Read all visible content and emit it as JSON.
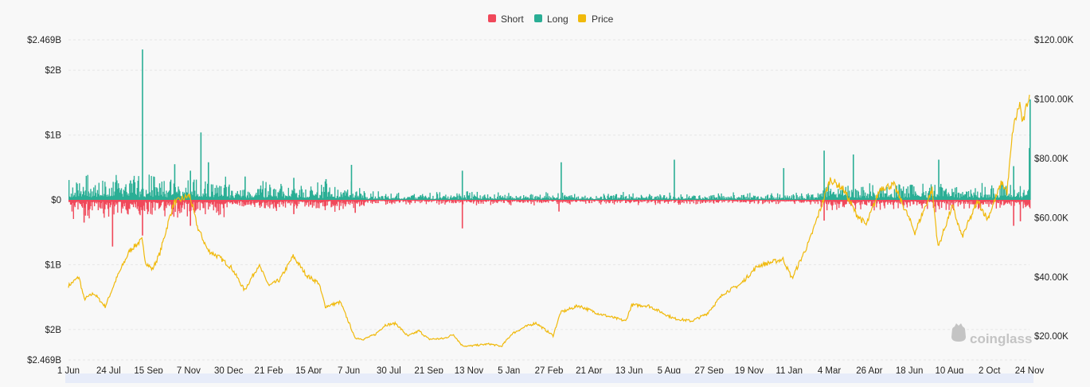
{
  "chart_data": {
    "type": "bar",
    "subtype": "diverging bar with price line overlay (liquidations)",
    "title": "",
    "legend": {
      "placement": "top-center",
      "items": [
        {
          "key": "short",
          "label": "Short"
        },
        {
          "key": "long",
          "label": "Long"
        },
        {
          "key": "price",
          "label": "Price"
        }
      ]
    },
    "colors": {
      "short": "#f0485a",
      "long": "#2aae95",
      "price": "#f0b90b",
      "grid": "#e6e6e6",
      "background": "#f8f8f8",
      "scrollbar": "#e7ecf9"
    },
    "x_axis": {
      "ticks": [
        "1 Jun",
        "24 Jul",
        "15 Sep",
        "7 Nov",
        "30 Dec",
        "21 Feb",
        "15 Apr",
        "7 Jun",
        "30 Jul",
        "21 Sep",
        "13 Nov",
        "5 Jan",
        "27 Feb",
        "21 Apr",
        "13 Jun",
        "5 Aug",
        "27 Sep",
        "19 Nov",
        "11 Jan",
        "4 Mar",
        "26 Apr",
        "18 Jun",
        "10 Aug",
        "2 Oct",
        "24 Nov"
      ],
      "start_date": "2021-06-01",
      "end_date": "2024-12-05"
    },
    "y_axis_left": {
      "ticks": [
        {
          "value": 2.469,
          "label": "$2.469B"
        },
        {
          "value": 2,
          "label": "$2B"
        },
        {
          "value": 1,
          "label": "$1B"
        },
        {
          "value": 0,
          "label": "$0"
        },
        {
          "value": -1,
          "label": "$1B"
        },
        {
          "value": -2,
          "label": "$2B"
        },
        {
          "value": -2.469,
          "label": "$2.469B"
        }
      ],
      "range": [
        -2.469,
        2.469
      ],
      "unit": "USD billions"
    },
    "y_axis_right": {
      "ticks": [
        {
          "value": 120000,
          "label": "$120.00K"
        },
        {
          "value": 100000,
          "label": "$100.00K"
        },
        {
          "value": 80000,
          "label": "$80.00K"
        },
        {
          "value": 60000,
          "label": "$60.00K"
        },
        {
          "value": 40000,
          "label": "$40.00K"
        },
        {
          "value": 20000,
          "label": "$20.00K"
        }
      ],
      "range": [
        12000,
        120000
      ],
      "unit": "USD"
    },
    "price_series": [
      [
        "2021-06-01",
        37000
      ],
      [
        "2021-06-15",
        40000
      ],
      [
        "2021-06-22",
        32500
      ],
      [
        "2021-07-05",
        34500
      ],
      [
        "2021-07-20",
        30000
      ],
      [
        "2021-08-05",
        40000
      ],
      [
        "2021-08-22",
        49000
      ],
      [
        "2021-09-07",
        52500
      ],
      [
        "2021-09-12",
        45000
      ],
      [
        "2021-09-21",
        42500
      ],
      [
        "2021-10-01",
        48000
      ],
      [
        "2021-10-15",
        61000
      ],
      [
        "2021-10-20",
        65000
      ],
      [
        "2021-11-10",
        67500
      ],
      [
        "2021-11-20",
        57000
      ],
      [
        "2021-12-04",
        49000
      ],
      [
        "2021-12-20",
        46500
      ],
      [
        "2022-01-05",
        43000
      ],
      [
        "2022-01-22",
        35500
      ],
      [
        "2022-02-10",
        44000
      ],
      [
        "2022-02-24",
        37000
      ],
      [
        "2022-03-10",
        39000
      ],
      [
        "2022-03-28",
        47000
      ],
      [
        "2022-04-15",
        40500
      ],
      [
        "2022-05-01",
        38000
      ],
      [
        "2022-05-10",
        30000
      ],
      [
        "2022-05-30",
        31500
      ],
      [
        "2022-06-13",
        23000
      ],
      [
        "2022-06-18",
        19500
      ],
      [
        "2022-06-30",
        19000
      ],
      [
        "2022-07-15",
        20500
      ],
      [
        "2022-07-29",
        23800
      ],
      [
        "2022-08-12",
        24300
      ],
      [
        "2022-08-28",
        20000
      ],
      [
        "2022-09-12",
        21800
      ],
      [
        "2022-09-25",
        19000
      ],
      [
        "2022-10-15",
        19200
      ],
      [
        "2022-10-28",
        20600
      ],
      [
        "2022-11-08",
        17000
      ],
      [
        "2022-11-15",
        16600
      ],
      [
        "2022-12-15",
        17400
      ],
      [
        "2022-12-31",
        16550
      ],
      [
        "2023-01-14",
        20800
      ],
      [
        "2023-01-31",
        23100
      ],
      [
        "2023-02-15",
        24500
      ],
      [
        "2023-03-10",
        20200
      ],
      [
        "2023-03-20",
        28000
      ],
      [
        "2023-04-13",
        30300
      ],
      [
        "2023-05-10",
        27600
      ],
      [
        "2023-06-15",
        25100
      ],
      [
        "2023-06-23",
        30500
      ],
      [
        "2023-07-15",
        30300
      ],
      [
        "2023-08-18",
        26000
      ],
      [
        "2023-09-11",
        25100
      ],
      [
        "2023-10-01",
        27500
      ],
      [
        "2023-10-24",
        34500
      ],
      [
        "2023-11-15",
        37500
      ],
      [
        "2023-12-08",
        43700
      ],
      [
        "2024-01-11",
        46000
      ],
      [
        "2024-01-23",
        39500
      ],
      [
        "2024-02-15",
        52000
      ],
      [
        "2024-03-05",
        66000
      ],
      [
        "2024-03-14",
        73000
      ],
      [
        "2024-04-01",
        69500
      ],
      [
        "2024-04-17",
        61500
      ],
      [
        "2024-05-01",
        57500
      ],
      [
        "2024-05-20",
        70000
      ],
      [
        "2024-06-07",
        71000
      ],
      [
        "2024-06-25",
        61000
      ],
      [
        "2024-07-05",
        55000
      ],
      [
        "2024-07-28",
        69500
      ],
      [
        "2024-08-05",
        50000
      ],
      [
        "2024-08-24",
        64000
      ],
      [
        "2024-09-06",
        53500
      ],
      [
        "2024-09-27",
        65500
      ],
      [
        "2024-10-10",
        59500
      ],
      [
        "2024-10-29",
        72000
      ],
      [
        "2024-11-05",
        68500
      ],
      [
        "2024-11-13",
        90000
      ],
      [
        "2024-11-22",
        98500
      ],
      [
        "2024-11-26",
        91500
      ],
      [
        "2024-12-05",
        102000
      ]
    ],
    "long_spikes": [
      [
        "2021-09-07",
        2.32
      ],
      [
        "2021-11-24",
        1.04
      ],
      [
        "2021-10-20",
        0.55
      ],
      [
        "2021-11-10",
        0.45
      ],
      [
        "2021-12-04",
        0.58
      ],
      [
        "2021-08-22",
        0.3
      ],
      [
        "2022-01-22",
        0.36
      ],
      [
        "2022-06-13",
        0.54
      ],
      [
        "2022-05-10",
        0.32
      ],
      [
        "2022-03-28",
        0.34
      ],
      [
        "2022-11-08",
        0.45
      ],
      [
        "2023-03-20",
        0.58
      ],
      [
        "2023-08-18",
        0.62
      ],
      [
        "2024-01-11",
        0.49
      ],
      [
        "2024-03-05",
        0.76
      ],
      [
        "2024-04-13",
        0.7
      ],
      [
        "2024-08-05",
        0.62
      ],
      [
        "2024-11-13",
        0.52
      ],
      [
        "2024-12-04",
        0.8
      ],
      [
        "2024-12-05",
        1.55
      ]
    ],
    "short_spikes": [
      [
        "2021-07-29",
        -0.72
      ],
      [
        "2021-09-07",
        -0.55
      ],
      [
        "2021-06-21",
        -0.35
      ],
      [
        "2021-11-10",
        -0.4
      ],
      [
        "2022-03-28",
        -0.22
      ],
      [
        "2022-06-18",
        -0.2
      ],
      [
        "2022-11-08",
        -0.44
      ],
      [
        "2023-03-17",
        -0.18
      ],
      [
        "2024-03-05",
        -0.32
      ],
      [
        "2024-11-13",
        -0.4
      ],
      [
        "2024-11-22",
        -0.33
      ]
    ]
  },
  "watermark": {
    "text": "coinglass",
    "icon": "coinglass-logo-icon"
  }
}
